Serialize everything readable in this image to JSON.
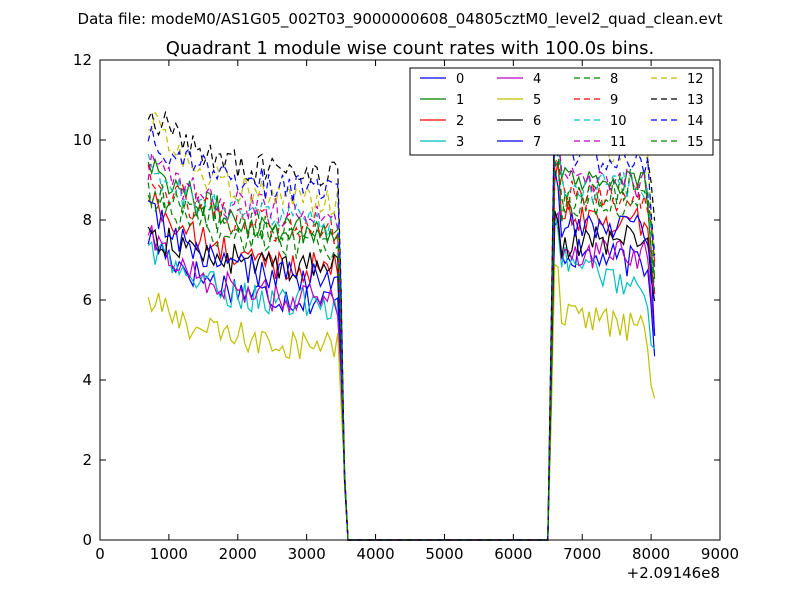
{
  "chart_data": {
    "type": "line",
    "suptitle": "Data file: modeM0/AS1G05_002T03_9000000608_04805cztM0_level2_quad_clean.evt",
    "title": "Quadrant 1 module wise count rates with 100.0s bins.",
    "xlabel": "",
    "ylabel": "",
    "x_offset_label": "+2.09146e8",
    "xlim": [
      0,
      9000
    ],
    "ylim": [
      0,
      12
    ],
    "xticks": [
      "0",
      "1000",
      "2000",
      "3000",
      "4000",
      "5000",
      "6000",
      "7000",
      "8000",
      "9000"
    ],
    "yticks": [
      "0",
      "2",
      "4",
      "6",
      "8",
      "10",
      "12"
    ],
    "grid": false,
    "legend_position": "top-right",
    "legend_columns": 4,
    "segments": [
      {
        "t_start": 700,
        "t_end": 3450,
        "step": 50
      },
      {
        "t_start": 6550,
        "t_end": 8050,
        "step": 50
      }
    ],
    "series": [
      {
        "name": "0",
        "color": "#0000ff",
        "dash": "solid",
        "level": 5.9,
        "start": 7.6,
        "late": 6.9,
        "end": 4.9
      },
      {
        "name": "1",
        "color": "#008000",
        "dash": "solid",
        "level": 7.6,
        "start": 9.6,
        "late": 8.9,
        "end": 6.6
      },
      {
        "name": "2",
        "color": "#ff0000",
        "dash": "solid",
        "level": 6.7,
        "start": 8.6,
        "late": 7.9,
        "end": 6.0
      },
      {
        "name": "3",
        "color": "#00bfbf",
        "dash": "solid",
        "level": 5.8,
        "start": 7.4,
        "late": 6.3,
        "end": 4.4
      },
      {
        "name": "4",
        "color": "#bf00bf",
        "dash": "solid",
        "level": 5.9,
        "start": 7.6,
        "late": 7.1,
        "end": 5.3
      },
      {
        "name": "5",
        "color": "#bfbf00",
        "dash": "solid",
        "level": 4.8,
        "start": 6.0,
        "late": 5.2,
        "end": 3.5
      },
      {
        "name": "6",
        "color": "#000000",
        "dash": "solid",
        "level": 6.8,
        "start": 7.7,
        "late": 7.6,
        "end": 5.7
      },
      {
        "name": "7",
        "color": "#0000ff",
        "dash": "solid",
        "level": 6.4,
        "start": 8.3,
        "late": 7.9,
        "end": 5.4
      },
      {
        "name": "8",
        "color": "#008000",
        "dash": "dashed",
        "level": 7.3,
        "start": 8.7,
        "late": 8.5,
        "end": 6.3
      },
      {
        "name": "9",
        "color": "#ff0000",
        "dash": "dashed",
        "level": 7.7,
        "start": 9.1,
        "late": 8.6,
        "end": 6.8
      },
      {
        "name": "10",
        "color": "#00bfbf",
        "dash": "dashed",
        "level": 7.9,
        "start": 9.3,
        "late": 8.8,
        "end": 6.9
      },
      {
        "name": "11",
        "color": "#bf00bf",
        "dash": "dashed",
        "level": 8.1,
        "start": 9.4,
        "late": 8.9,
        "end": 7.0
      },
      {
        "name": "12",
        "color": "#bfbf00",
        "dash": "dashed",
        "level": 8.3,
        "start": 10.6,
        "late": 9.7,
        "end": 7.1
      },
      {
        "name": "13",
        "color": "#000000",
        "dash": "dashed",
        "level": 9.0,
        "start": 10.8,
        "late": 9.9,
        "end": 7.7
      },
      {
        "name": "14",
        "color": "#0000ff",
        "dash": "dashed",
        "level": 8.7,
        "start": 10.2,
        "late": 9.5,
        "end": 7.4
      },
      {
        "name": "15",
        "color": "#008000",
        "dash": "dashed",
        "level": 7.7,
        "start": 8.8,
        "late": 9.0,
        "end": 6.6
      }
    ]
  }
}
